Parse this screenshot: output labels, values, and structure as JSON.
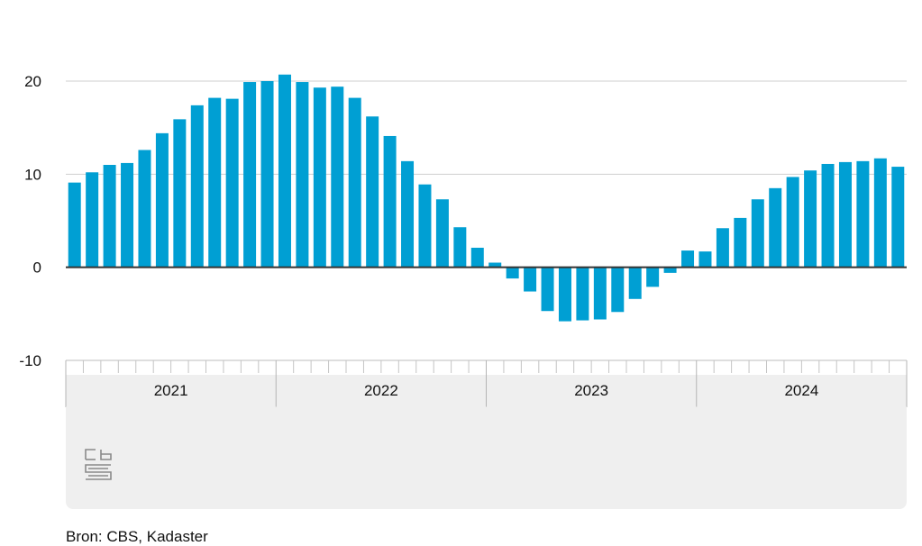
{
  "chart_data": {
    "type": "bar",
    "title": "",
    "xlabel": "",
    "ylabel": "",
    "ylim": [
      -10,
      20
    ],
    "y_ticks": [
      "20",
      "10",
      "0",
      "-10"
    ],
    "y_tick_values": [
      20,
      10,
      0,
      -10
    ],
    "grid": true,
    "bar_color": "#009fd3",
    "year_labels": [
      "2021",
      "2022",
      "2023",
      "2024"
    ],
    "months_per_year": 12,
    "values": [
      9.1,
      10.2,
      11.0,
      11.2,
      12.6,
      14.4,
      15.9,
      17.4,
      18.2,
      18.1,
      19.9,
      20.0,
      20.7,
      19.9,
      19.3,
      19.4,
      18.2,
      16.2,
      14.1,
      11.4,
      8.9,
      7.3,
      4.3,
      2.1,
      0.5,
      -1.2,
      -2.6,
      -4.7,
      -5.8,
      -5.7,
      -5.6,
      -4.8,
      -3.4,
      -2.1,
      -0.6,
      1.8,
      1.7,
      4.2,
      5.3,
      7.3,
      8.5,
      9.7,
      10.4,
      11.1,
      11.3,
      11.4,
      11.7,
      10.8
    ]
  },
  "footer": {
    "source": "Bron: CBS, Kadaster"
  },
  "logo": {
    "name": "cbs-logo"
  }
}
